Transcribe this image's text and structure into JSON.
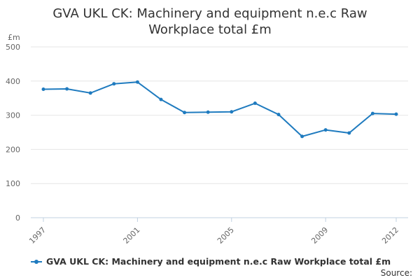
{
  "chart_data": {
    "type": "line",
    "title_lines": [
      "GVA UKL CK: Machinery and equipment n.e.c Raw",
      "Workplace total £m"
    ],
    "ylabel": "£m",
    "xlabel": "",
    "x": [
      1997,
      1998,
      1999,
      2000,
      2001,
      2002,
      2003,
      2004,
      2005,
      2006,
      2007,
      2008,
      2009,
      2010,
      2011,
      2012
    ],
    "xtick_labels": [
      "1997",
      "2001",
      "2005",
      "2009",
      "2012"
    ],
    "yticks": [
      0,
      100,
      200,
      300,
      400,
      500
    ],
    "ylim": [
      0,
      500
    ],
    "grid": true,
    "legend_position": "bottom",
    "series": [
      {
        "name": "GVA UKL CK: Machinery and equipment n.e.c Raw Workplace total £m",
        "color": "#1f7bbf",
        "values": [
          376,
          377,
          365,
          392,
          397,
          346,
          308,
          309,
          310,
          335,
          302,
          238,
          257,
          248,
          305,
          303
        ]
      }
    ]
  },
  "source_label": "Source:"
}
